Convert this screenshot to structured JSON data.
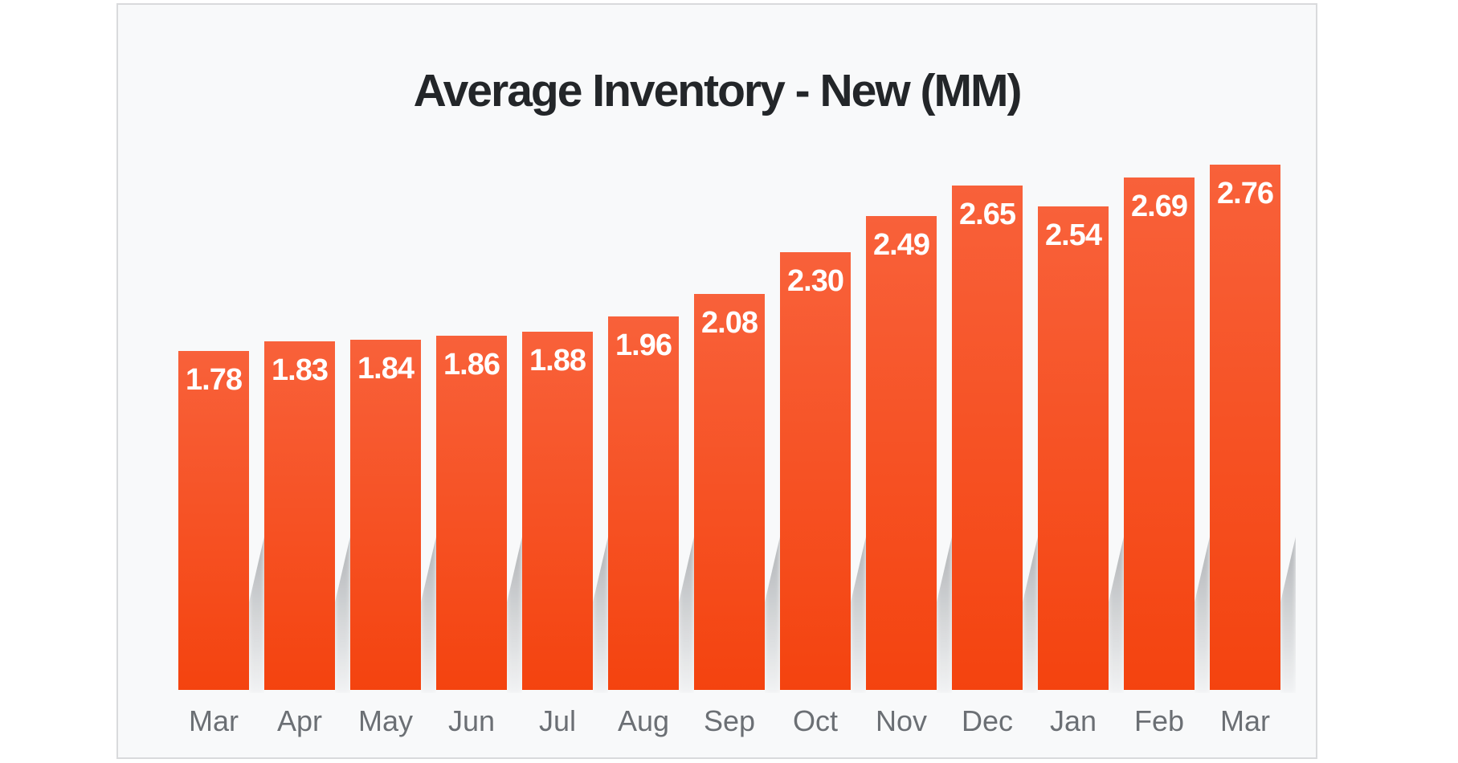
{
  "chart_data": {
    "type": "bar",
    "title": "Average Inventory - New (MM)",
    "categories": [
      "Mar",
      "Apr",
      "May",
      "Jun",
      "Jul",
      "Aug",
      "Sep",
      "Oct",
      "Nov",
      "Dec",
      "Jan",
      "Feb",
      "Mar"
    ],
    "values": [
      1.78,
      1.83,
      1.84,
      1.86,
      1.88,
      1.96,
      2.08,
      2.3,
      2.49,
      2.65,
      2.54,
      2.69,
      2.76
    ],
    "value_labels": [
      "1.78",
      "1.83",
      "1.84",
      "1.86",
      "1.88",
      "1.96",
      "2.08",
      "2.30",
      "2.49",
      "2.65",
      "2.54",
      "2.69",
      "2.76"
    ],
    "xlabel": "",
    "ylabel": "",
    "ylim": [
      0,
      2.9
    ],
    "grid": false,
    "legend": false,
    "colors": {
      "bar_top": "#f8613a",
      "bar_bottom": "#f4430f",
      "value_label": "#ffffff",
      "axis_label": "#6b6f74",
      "title": "#232629",
      "card_background": "#f8f9fa",
      "card_border": "#d9dadc"
    }
  }
}
